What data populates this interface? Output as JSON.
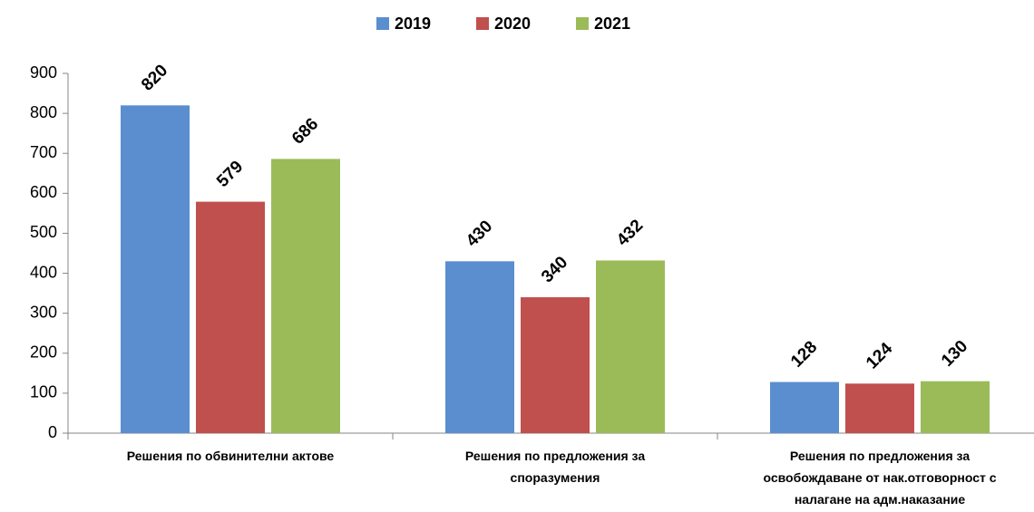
{
  "chart_data": {
    "type": "bar",
    "categories": [
      [
        "Решения по обвинителни актове"
      ],
      [
        "Решения по предложения за",
        "споразумения"
      ],
      [
        "Решения по предложения за",
        "освобождаване от нак.отговорност с",
        "налагане на адм.наказание"
      ]
    ],
    "series": [
      {
        "name": "2019",
        "color": "#5a8ecf",
        "values": [
          820,
          430,
          128
        ]
      },
      {
        "name": "2020",
        "color": "#c0504d",
        "values": [
          579,
          340,
          124
        ]
      },
      {
        "name": "2021",
        "color": "#9bbb59",
        "values": [
          686,
          432,
          130
        ]
      }
    ],
    "ylim": [
      0,
      900
    ],
    "yticks": [
      0,
      100,
      200,
      300,
      400,
      500,
      600,
      700,
      800,
      900
    ],
    "legend": "top",
    "grid": false
  }
}
